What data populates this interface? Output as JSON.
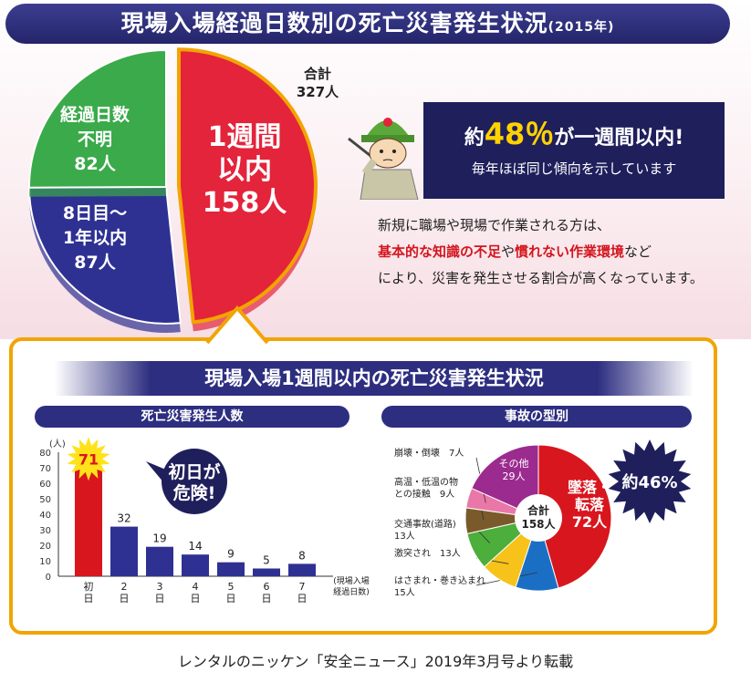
{
  "title": "現場入場経過日数別の死亡災害発生状況",
  "title_year": "(2015年)",
  "chart_data": [
    {
      "type": "pie",
      "total_label": "合計\n327人",
      "slices": [
        {
          "label": "1週間\n以内\n158人",
          "value": 158,
          "color": "#e3243b"
        },
        {
          "label": "8日目～\n1年以内\n87人",
          "value": 87,
          "color": "#2e3192"
        },
        {
          "label": "経過日数\n不明\n82人",
          "value": 82,
          "color": "#3aaa4a"
        }
      ]
    },
    {
      "type": "bar",
      "title": "死亡災害発生人数",
      "ylabel": "(人)",
      "xlabel": "(現場入場\n経過日数)",
      "ylim": [
        0,
        80
      ],
      "yticks": [
        0,
        10,
        20,
        30,
        40,
        50,
        60,
        70,
        80
      ],
      "categories": [
        "初日",
        "2日",
        "3日",
        "4日",
        "5日",
        "6日",
        "7日"
      ],
      "values": [
        71,
        32,
        19,
        14,
        9,
        5,
        8
      ],
      "colors": [
        "#d8161e",
        "#2e3192",
        "#2e3192",
        "#2e3192",
        "#2e3192",
        "#2e3192",
        "#2e3192"
      ]
    },
    {
      "type": "pie",
      "title": "事故の型別",
      "center_label": "合計\n158人",
      "slices": [
        {
          "label": "墜落・\n転落\n72人",
          "value": 72,
          "color": "#d8161e"
        },
        {
          "label": "はさまれ・巻き込まれ\n15人",
          "value": 15,
          "color": "#1a6fc4"
        },
        {
          "label": "激突され　13人",
          "value": 13,
          "color": "#f7c21a"
        },
        {
          "label": "交通事故(道路)\n13人",
          "value": 13,
          "color": "#4cae3b"
        },
        {
          "label": "高温・低温の物\nとの接触　9人",
          "value": 9,
          "color": "#7a5a2a"
        },
        {
          "label": "崩壊・倒壊　7人",
          "value": 7,
          "color": "#e978a8"
        },
        {
          "label": "その他\n29人",
          "value": 29,
          "color": "#9b2b8f"
        }
      ]
    }
  ],
  "message": {
    "prefix": "約",
    "percent": "48％",
    "suffix": "が一週間以内!",
    "sub": "毎年ほぼ同じ傾向を示しています"
  },
  "paragraph": {
    "line1": "新規に職場や現場で作業される方は、",
    "red1": "基本的な知識の不足",
    "mid": "や",
    "red2": "慣れない作業環境",
    "tail": "など",
    "line3": "により、災害を発生させる割合が高くなっています。"
  },
  "lower_title": "現場入場1週間以内の死亡災害発生状況",
  "callout_first_day": "初日が\n危険!",
  "callout_46": "約46%",
  "caption": "レンタルのニッケン「安全ニュース」2019年3月号より転載",
  "colors": {
    "navy": "#2d2e80",
    "red": "#d8161e",
    "orange_border": "#f2a400",
    "yellow": "#ffd200"
  }
}
